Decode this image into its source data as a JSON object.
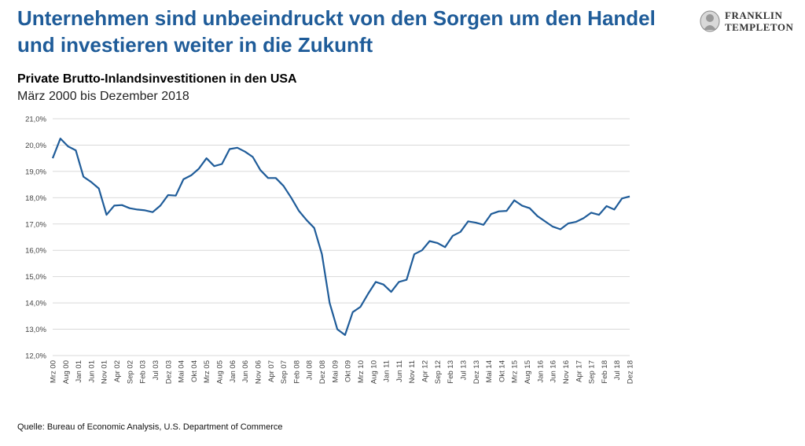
{
  "header": {
    "title": "Unternehmen sind unbeeindruckt von den Sorgen um den Handel und investieren weiter in die Zukunft",
    "subtitle": "Private Brutto-Inlandsinvestitionen in den USA",
    "date_range": "März 2000 bis Dezember 2018"
  },
  "logo": {
    "line1": "FRANKLIN",
    "line2": "TEMPLETON"
  },
  "source": "Quelle: Bureau of Economic Analysis, U.S. Department of Commerce",
  "chart_data": {
    "type": "line",
    "title": "Private Brutto-Inlandsinvestitionen in den USA",
    "subtitle": "März 2000 bis Dezember 2018",
    "ylim": [
      12.0,
      21.0
    ],
    "yticks": [
      "12,0%",
      "13,0%",
      "14,0%",
      "15,0%",
      "16,0%",
      "17,0%",
      "18,0%",
      "19,0%",
      "20,0%",
      "21,0%"
    ],
    "grid": true,
    "line_color": "#1f5c99",
    "x": [
      "Mrz 00",
      "Jun 00",
      "Sep 00",
      "Dez 00",
      "Mrz 01",
      "Jun 01",
      "Sep 01",
      "Dez 01",
      "Mrz 02",
      "Jun 02",
      "Sep 02",
      "Dez 02",
      "Mrz 03",
      "Jun 03",
      "Sep 03",
      "Dez 03",
      "Mrz 04",
      "Jun 04",
      "Sep 04",
      "Dez 04",
      "Mrz 05",
      "Jun 05",
      "Sep 05",
      "Dez 05",
      "Mrz 06",
      "Jun 06",
      "Sep 06",
      "Dez 06",
      "Mrz 07",
      "Jun 07",
      "Sep 07",
      "Dez 07",
      "Mrz 08",
      "Jun 08",
      "Sep 08",
      "Dez 08",
      "Mrz 09",
      "Jun 09",
      "Sep 09",
      "Dez 09",
      "Mrz 10",
      "Jun 10",
      "Sep 10",
      "Dez 10",
      "Mrz 11",
      "Jun 11",
      "Sep 11",
      "Dez 11",
      "Mrz 12",
      "Jun 12",
      "Sep 12",
      "Dez 12",
      "Mrz 13",
      "Jun 13",
      "Sep 13",
      "Dez 13",
      "Mrz 14",
      "Jun 14",
      "Sep 14",
      "Dez 14",
      "Mrz 15",
      "Jun 15",
      "Sep 15",
      "Dez 15",
      "Mrz 16",
      "Jun 16",
      "Sep 16",
      "Dez 16",
      "Mrz 17",
      "Jun 17",
      "Sep 17",
      "Dez 17",
      "Mrz 18",
      "Jun 18",
      "Sep 18",
      "Dez 18"
    ],
    "values": [
      19.5,
      20.25,
      19.95,
      19.8,
      18.8,
      18.6,
      18.35,
      17.35,
      17.7,
      17.72,
      17.6,
      17.55,
      17.52,
      17.45,
      17.7,
      18.1,
      18.08,
      18.7,
      18.85,
      19.1,
      19.5,
      19.2,
      19.28,
      19.85,
      19.9,
      19.75,
      19.55,
      19.05,
      18.75,
      18.75,
      18.45,
      18.0,
      17.5,
      17.15,
      16.85,
      15.85,
      14.0,
      13.0,
      12.78,
      13.65,
      13.85,
      14.35,
      14.8,
      14.7,
      14.42,
      14.8,
      14.88,
      15.85,
      16.0,
      16.35,
      16.28,
      16.12,
      16.55,
      16.7,
      17.1,
      17.05,
      16.97,
      17.38,
      17.48,
      17.5,
      17.9,
      17.7,
      17.6,
      17.3,
      17.1,
      16.9,
      16.8,
      17.02,
      17.08,
      17.22,
      17.43,
      17.35,
      17.68,
      17.55,
      17.97,
      18.05
    ],
    "xtick_labels": [
      "Mrz 00",
      "Aug 00",
      "Jan 01",
      "Jun 01",
      "Nov 01",
      "Apr 02",
      "Sep 02",
      "Feb 03",
      "Jul 03",
      "Dez 03",
      "Mai 04",
      "Okt 04",
      "Mrz 05",
      "Aug 05",
      "Jan 06",
      "Jun 06",
      "Nov 06",
      "Apr 07",
      "Sep 07",
      "Feb 08",
      "Jul 08",
      "Dez 08",
      "Mai 09",
      "Okt 09",
      "Mrz 10",
      "Aug 10",
      "Jan 11",
      "Jun 11",
      "Nov 11",
      "Apr 12",
      "Sep 12",
      "Feb 13",
      "Jul 13",
      "Dez 13",
      "Mai 14",
      "Okt 14",
      "Mrz 15",
      "Aug 15",
      "Jan 16",
      "Jun 16",
      "Nov 16",
      "Apr 17",
      "Sep 17",
      "Feb 18",
      "Jul 18",
      "Dez 18"
    ]
  }
}
